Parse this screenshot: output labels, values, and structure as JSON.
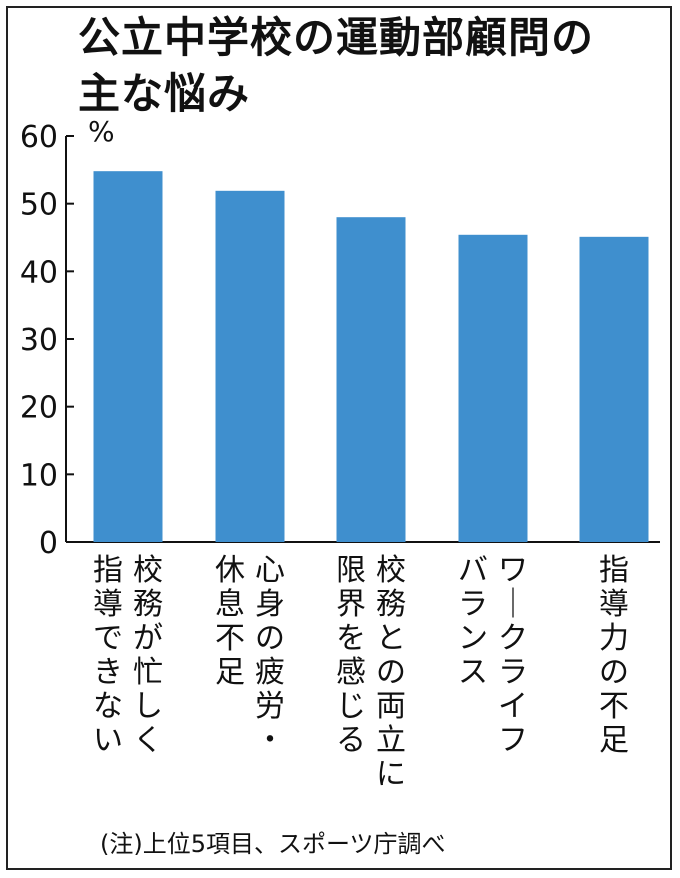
{
  "title": "公立中学校の運動部顧問の\n主な悩み",
  "unit_label": "%",
  "note": "(注)上位5項目、スポーツ庁調べ",
  "chart_data": {
    "type": "bar",
    "categories": [
      [
        "校務が忙しく",
        "指導できない"
      ],
      [
        "心身の疲労・",
        "休息不足"
      ],
      [
        "校務との両立に",
        "限界を感じる"
      ],
      [
        "ワークライフ",
        "バランス"
      ],
      [
        "指導力の不足"
      ]
    ],
    "values": [
      54.8,
      51.9,
      48.0,
      45.4,
      45.1
    ],
    "yticks": [
      0,
      10,
      20,
      30,
      40,
      50,
      60
    ],
    "ylim": [
      0,
      60
    ],
    "bar_color": "#3f8fce",
    "grid": false
  }
}
